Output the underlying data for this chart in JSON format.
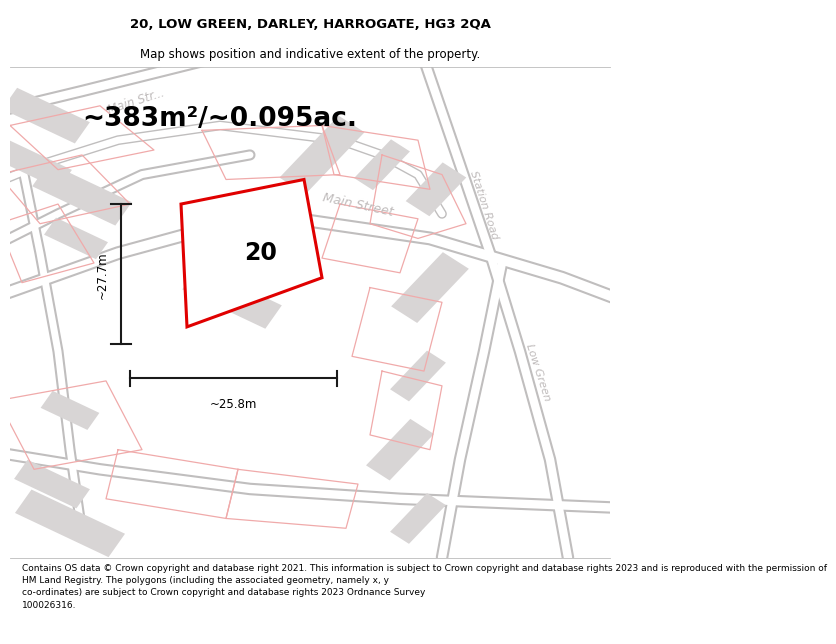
{
  "title": "20, LOW GREEN, DARLEY, HARROGATE, HG3 2QA",
  "subtitle": "Map shows position and indicative extent of the property.",
  "area_text": "~383m²/~0.095ac.",
  "width_label": "~25.8m",
  "height_label": "~27.7m",
  "plot_number": "20",
  "footer": "Contains OS data © Crown copyright and database right 2021. This information is subject to Crown copyright and database rights 2023 and is reproduced with the permission of\nHM Land Registry. The polygons (including the associated geometry, namely x, y\nco-ordinates) are subject to Crown copyright and database rights 2023 Ordnance Survey\n100026316.",
  "map_bg": "#f2f0f0",
  "road_fill": "#ffffff",
  "road_edge": "#c0bebe",
  "building_color": "#d8d5d5",
  "red_line_color": "#e00000",
  "pink_line_color": "#f0aaaa",
  "gray_text": "#c0bcbc",
  "dim_color": "#1a1a1a",
  "title_fontsize": 9.5,
  "subtitle_fontsize": 8.5,
  "area_fontsize": 19,
  "label_fontsize": 8.5,
  "footer_fontsize": 6.5,
  "road_label_fontsize": 9
}
